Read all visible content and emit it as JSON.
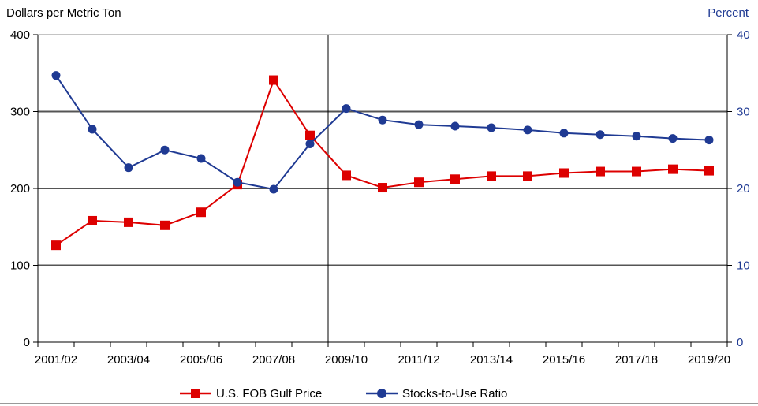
{
  "chart_data": {
    "type": "line",
    "ylabel_left": "Dollars per Metric Ton",
    "ylabel_right": "Percent",
    "ylim_left": [
      0,
      400
    ],
    "ylim_right": [
      0,
      40
    ],
    "yticks_left": [
      "0",
      "100",
      "200",
      "300",
      "400"
    ],
    "yticks_right": [
      "0",
      "10",
      "20",
      "30",
      "40"
    ],
    "x": [
      "2001/02",
      "2002/03",
      "2003/04",
      "2004/05",
      "2005/06",
      "2006/07",
      "2007/08",
      "2008/09",
      "2009/10",
      "2010/11",
      "2011/12",
      "2012/13",
      "2013/14",
      "2014/15",
      "2015/16",
      "2016/17",
      "2017/18",
      "2018/19",
      "2019/20"
    ],
    "xtick_labels": [
      "2001/02",
      "2003/04",
      "2005/06",
      "2007/08",
      "2009/10",
      "2011/12",
      "2013/14",
      "2015/16",
      "2017/18",
      "2019/20"
    ],
    "grid": "horizontal",
    "legend_position": "bottom",
    "series": [
      {
        "name": "U.S. FOB Gulf Price",
        "axis": "left",
        "marker": "square",
        "color": "#dd0000",
        "values": [
          126,
          158,
          156,
          152,
          169,
          205,
          341,
          269,
          217,
          201,
          208,
          212,
          216,
          216,
          220,
          222,
          222,
          225,
          223
        ]
      },
      {
        "name": "Stocks-to-Use Ratio",
        "axis": "right",
        "marker": "circle",
        "color": "#1f3a93",
        "values": [
          34.7,
          27.7,
          22.7,
          25.0,
          23.9,
          20.8,
          19.9,
          25.8,
          30.4,
          28.9,
          28.3,
          28.1,
          27.9,
          27.6,
          27.2,
          27.0,
          26.8,
          26.5,
          26.3
        ]
      }
    ],
    "projection_divider_after": "2009/10"
  }
}
